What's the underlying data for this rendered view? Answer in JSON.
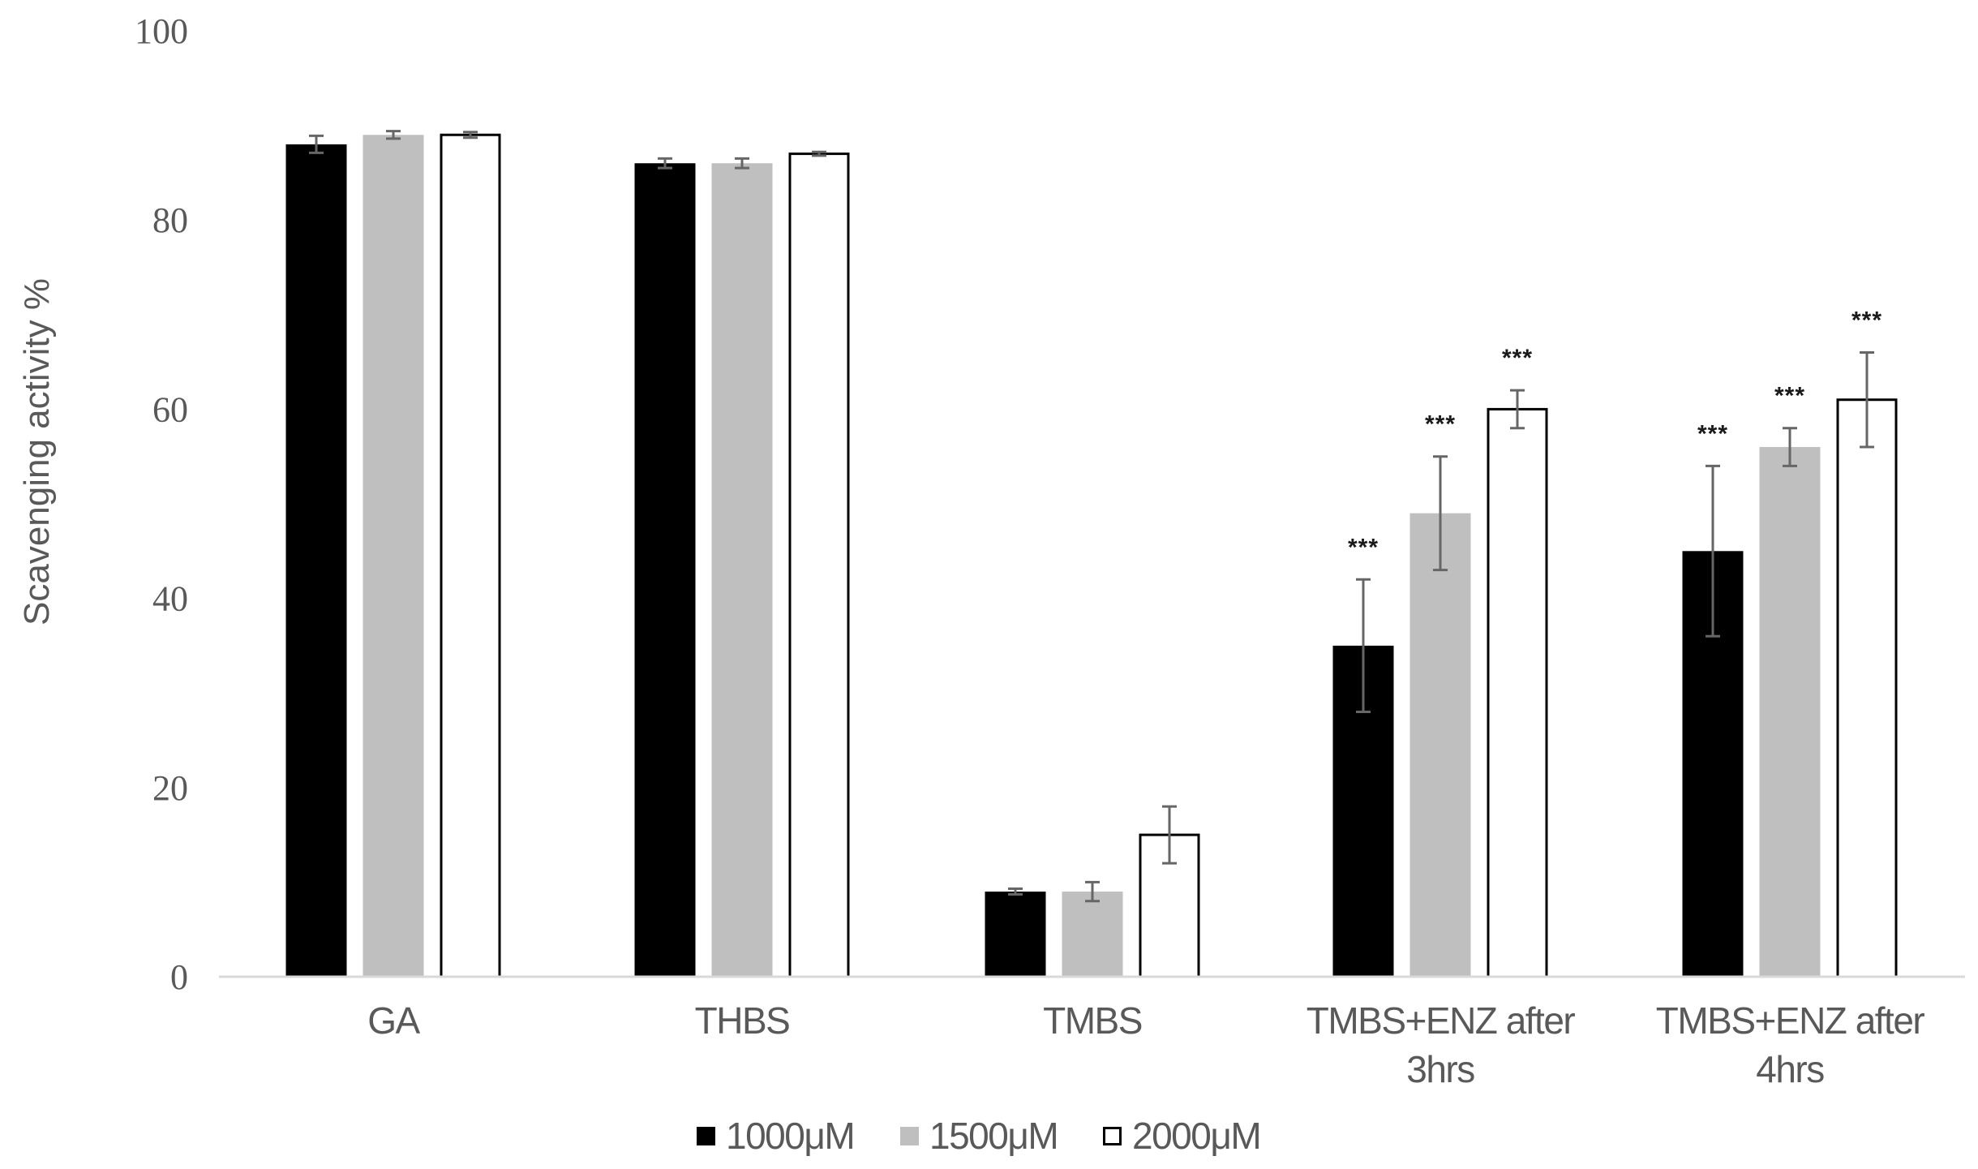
{
  "chart_data": {
    "type": "bar",
    "title": "",
    "xlabel": "",
    "ylabel": "Scavenging activity %",
    "ylim": [
      0,
      100
    ],
    "yticks": [
      0,
      20,
      40,
      60,
      80,
      100
    ],
    "grid": false,
    "legend_position": "bottom",
    "categories": [
      "GA",
      "THBS",
      "TMBS",
      "TMBS+ENZ after 3hrs",
      "TMBS+ENZ after 4hrs"
    ],
    "category_label_lines": [
      [
        "GA"
      ],
      [
        "THBS"
      ],
      [
        "TMBS"
      ],
      [
        "TMBS+ENZ after",
        "3hrs"
      ],
      [
        "TMBS+ENZ after",
        "4hrs"
      ]
    ],
    "series": [
      {
        "name": "1000μM",
        "fill": "#000000",
        "stroke": "#000000",
        "values": [
          88,
          86,
          9,
          35,
          45
        ],
        "errors": [
          0.9,
          0.5,
          0.3,
          7,
          9
        ],
        "significance": [
          "",
          "",
          "",
          "***",
          "***"
        ]
      },
      {
        "name": "1500μM",
        "fill": "#bfbfbf",
        "stroke": "#bfbfbf",
        "values": [
          89,
          86,
          9,
          49,
          56
        ],
        "errors": [
          0.4,
          0.5,
          1,
          6,
          2
        ],
        "significance": [
          "",
          "",
          "",
          "***",
          "***"
        ]
      },
      {
        "name": "2000μM",
        "fill": "#ffffff",
        "stroke": "#000000",
        "values": [
          89,
          87,
          15,
          60,
          61
        ],
        "errors": [
          0.3,
          0.2,
          3,
          2,
          5
        ],
        "significance": [
          "",
          "",
          "",
          "***",
          "***"
        ]
      }
    ],
    "annotations": "*** marks significance above TMBS+ENZ bars"
  },
  "colors": {
    "axis_line": "#d9d9d9",
    "text": "#595959",
    "error_bar": "#666666",
    "sig_text": "#1a1a1a"
  }
}
